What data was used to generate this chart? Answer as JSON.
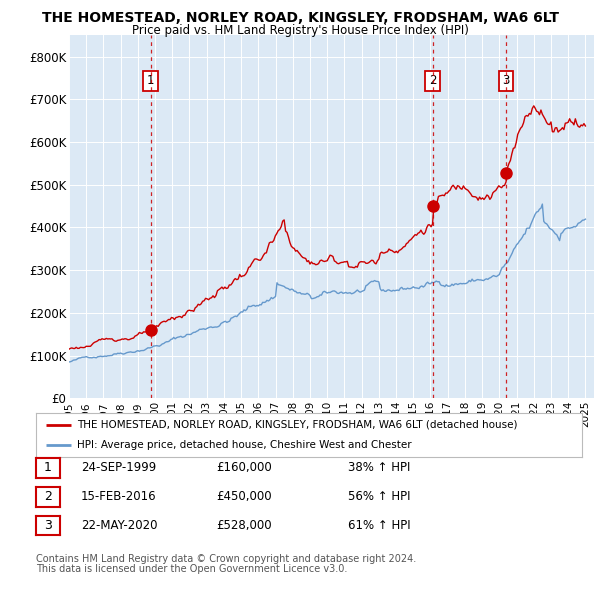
{
  "title": "THE HOMESTEAD, NORLEY ROAD, KINGSLEY, FRODSHAM, WA6 6LT",
  "subtitle": "Price paid vs. HM Land Registry's House Price Index (HPI)",
  "plot_bg_color": "#dce9f5",
  "red_line_color": "#cc0000",
  "blue_line_color": "#6699cc",
  "sale1_date_num": 1999.75,
  "sale1_price": 160000,
  "sale1_label": "1",
  "sale2_date_num": 2016.12,
  "sale2_price": 450000,
  "sale2_label": "2",
  "sale3_date_num": 2020.39,
  "sale3_price": 528000,
  "sale3_label": "3",
  "xmin": 1995.0,
  "xmax": 2025.5,
  "ymin": 0,
  "ymax": 850000,
  "yticks": [
    0,
    100000,
    200000,
    300000,
    400000,
    500000,
    600000,
    700000,
    800000
  ],
  "ytick_labels": [
    "£0",
    "£100K",
    "£200K",
    "£300K",
    "£400K",
    "£500K",
    "£600K",
    "£700K",
    "£800K"
  ],
  "legend_label_red": "THE HOMESTEAD, NORLEY ROAD, KINGSLEY, FRODSHAM, WA6 6LT (detached house)",
  "legend_label_blue": "HPI: Average price, detached house, Cheshire West and Chester",
  "table_rows": [
    {
      "num": "1",
      "date": "24-SEP-1999",
      "price": "£160,000",
      "hpi": "38% ↑ HPI"
    },
    {
      "num": "2",
      "date": "15-FEB-2016",
      "price": "£450,000",
      "hpi": "56% ↑ HPI"
    },
    {
      "num": "3",
      "date": "22-MAY-2020",
      "price": "£528,000",
      "hpi": "61% ↑ HPI"
    }
  ],
  "footnote1": "Contains HM Land Registry data © Crown copyright and database right 2024.",
  "footnote2": "This data is licensed under the Open Government Licence v3.0.",
  "xtick_years": [
    1995,
    1996,
    1997,
    1998,
    1999,
    2000,
    2001,
    2002,
    2003,
    2004,
    2005,
    2006,
    2007,
    2008,
    2009,
    2010,
    2011,
    2012,
    2013,
    2014,
    2015,
    2016,
    2017,
    2018,
    2019,
    2020,
    2021,
    2022,
    2023,
    2024,
    2025
  ]
}
